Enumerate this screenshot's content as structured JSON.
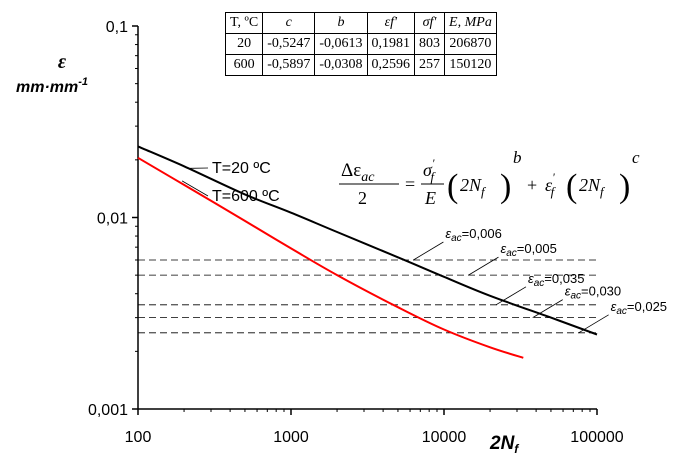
{
  "chart_data": {
    "type": "line",
    "xscale": "log",
    "yscale": "log",
    "xlim": [
      100,
      100000
    ],
    "ylim": [
      0.001,
      0.1
    ],
    "x_ticks": [
      "100",
      "1000",
      "10000",
      "100000"
    ],
    "y_ticks": [
      "0,001",
      "0,01",
      "0,1"
    ],
    "xlabel": "2N",
    "xlabel_sub": "f",
    "ylabel_symbol": "ε",
    "ylabel_unit": "mm·mm",
    "ylabel_unit_sup": "-1",
    "grid": false,
    "series": [
      {
        "name": "T=20 ºC",
        "color": "#000000",
        "x": [
          100,
          200,
          500,
          1000,
          2000,
          5000,
          10000,
          20000,
          50000,
          100000
        ],
        "y": [
          0.0235,
          0.0185,
          0.0132,
          0.0106,
          0.0084,
          0.0062,
          0.0049,
          0.0039,
          0.003,
          0.00245
        ]
      },
      {
        "name": "T=600 ºC",
        "color": "#ff0000",
        "x": [
          100,
          200,
          500,
          1000,
          2000,
          5000,
          10000,
          20000,
          33000
        ],
        "y": [
          0.0205,
          0.0148,
          0.0096,
          0.0069,
          0.005,
          0.0034,
          0.0026,
          0.0021,
          0.00185
        ]
      }
    ],
    "reference_lines": [
      {
        "label": "0,006",
        "y": 0.006
      },
      {
        "label": "0,005",
        "y": 0.005
      },
      {
        "label": "0,035",
        "y": 0.0035
      },
      {
        "label": "0,030",
        "y": 0.003
      },
      {
        "label": "0,025",
        "y": 0.0025
      }
    ],
    "ref_label_symbol": "ε",
    "ref_label_sub": "ac",
    "equation": {
      "lhs_num": "Δε",
      "lhs_num_sub": "ac",
      "lhs_den": "2",
      "sigma": "σ",
      "sigma_sup": "'",
      "sigma_sub": "f",
      "E": "E",
      "two_N": "2N",
      "N_sub": "f",
      "exp_b": "b",
      "plus": "+",
      "eps": "ε",
      "eps_sup": "'",
      "eps_sub": "f",
      "exp_c": "c"
    }
  },
  "table": {
    "headers": [
      "T, ºC",
      "c",
      "b",
      "εf'",
      "σf'",
      "E, MPa"
    ],
    "rows": [
      [
        "20",
        "-0,5247",
        "-0,0613",
        "0,1981",
        "803",
        "206870"
      ],
      [
        "600",
        "-0,5897",
        "-0,0308",
        "0,2596",
        "257",
        "150120"
      ]
    ]
  }
}
